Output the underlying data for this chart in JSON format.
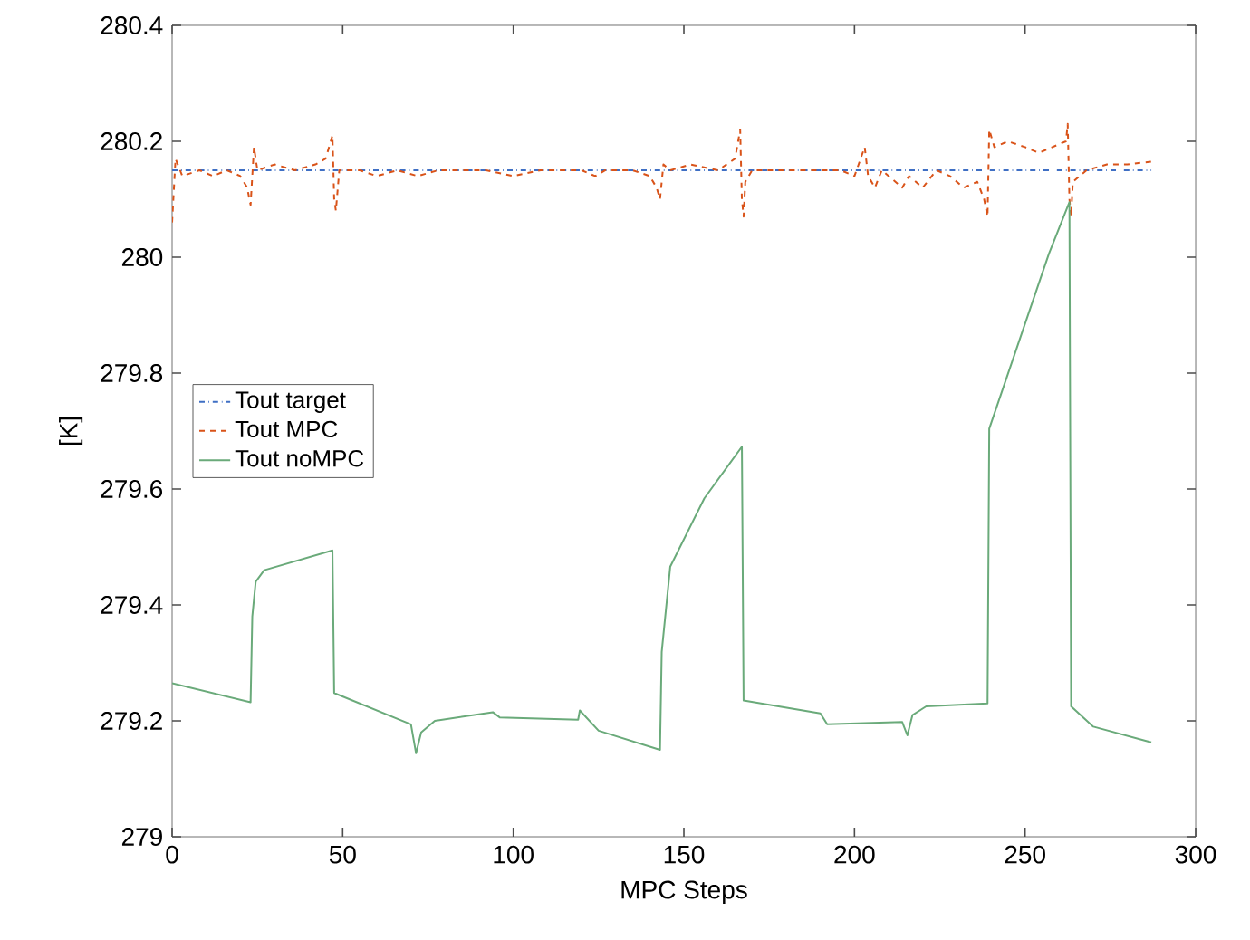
{
  "chart_data": {
    "type": "line",
    "xlabel": "MPC Steps",
    "ylabel": "[K]",
    "xlim": [
      0,
      300
    ],
    "ylim": [
      279,
      280.4
    ],
    "xticks": [
      0,
      50,
      100,
      150,
      200,
      250,
      300
    ],
    "yticks": [
      279,
      279.2,
      279.4,
      279.6,
      279.8,
      280,
      280.2,
      280.4
    ],
    "grid": false,
    "legend": "left",
    "marker": "none",
    "series": [
      {
        "name": "Tout target",
        "color": "#3f6fc4",
        "line_style": "dashdot",
        "x": [
          0,
          287
        ],
        "values": [
          280.15,
          280.15
        ]
      },
      {
        "name": "Tout MPC",
        "color": "#d95319",
        "line_style": "dashed",
        "x": [
          0,
          1,
          3,
          8,
          12,
          16,
          20,
          22,
          23,
          24,
          25,
          30,
          36,
          42,
          45,
          46,
          47,
          47.5,
          48,
          49,
          55,
          60,
          66,
          72,
          78,
          85,
          92,
          100,
          108,
          115,
          120,
          124,
          127,
          135,
          140,
          142,
          143,
          144,
          146,
          152,
          160,
          165,
          166.5,
          167,
          167.5,
          168,
          170,
          180,
          189,
          196,
          200,
          203,
          204,
          206,
          208,
          212,
          214,
          216,
          220,
          224,
          228,
          232,
          236,
          238,
          239,
          239.5,
          241,
          245,
          250,
          254,
          258,
          262,
          262.5,
          263,
          263.5,
          264,
          268,
          274,
          280,
          287
        ],
        "values": [
          280.06,
          280.17,
          280.14,
          280.15,
          280.14,
          280.15,
          280.14,
          280.12,
          280.09,
          280.19,
          280.15,
          280.16,
          280.15,
          280.16,
          280.17,
          280.19,
          280.21,
          280.1,
          280.08,
          280.15,
          280.15,
          280.14,
          280.15,
          280.14,
          280.15,
          280.15,
          280.15,
          280.14,
          280.15,
          280.15,
          280.15,
          280.14,
          280.15,
          280.15,
          280.14,
          280.12,
          280.1,
          280.16,
          280.15,
          280.16,
          280.15,
          280.17,
          280.22,
          280.1,
          280.07,
          280.13,
          280.15,
          280.15,
          280.15,
          280.15,
          280.14,
          280.19,
          280.14,
          280.12,
          280.15,
          280.13,
          280.12,
          280.14,
          280.12,
          280.15,
          280.14,
          280.12,
          280.13,
          280.1,
          280.07,
          280.22,
          280.19,
          280.2,
          280.19,
          280.18,
          280.19,
          280.2,
          280.23,
          280.1,
          280.07,
          280.13,
          280.15,
          280.16,
          280.16,
          280.165
        ]
      },
      {
        "name": "Tout noMPC",
        "color": "#6aaa7a",
        "line_style": "solid",
        "x": [
          0,
          23,
          23.5,
          24.5,
          27,
          47,
          47.5,
          70,
          71.5,
          73,
          77,
          94,
          96,
          119,
          119.5,
          125,
          143,
          143.5,
          146,
          156,
          167,
          167.5,
          190,
          192,
          214,
          215.5,
          217,
          221,
          239,
          239.5,
          257,
          263,
          263.5,
          270,
          287
        ],
        "values": [
          279.265,
          279.232,
          279.38,
          279.44,
          279.46,
          279.494,
          279.248,
          279.194,
          279.144,
          279.18,
          279.2,
          279.215,
          279.206,
          279.202,
          279.218,
          279.183,
          279.15,
          279.319,
          279.466,
          279.584,
          279.673,
          279.235,
          279.213,
          279.194,
          279.198,
          279.175,
          279.21,
          279.225,
          279.23,
          279.704,
          280.006,
          280.095,
          279.225,
          279.19,
          279.163
        ]
      }
    ]
  }
}
